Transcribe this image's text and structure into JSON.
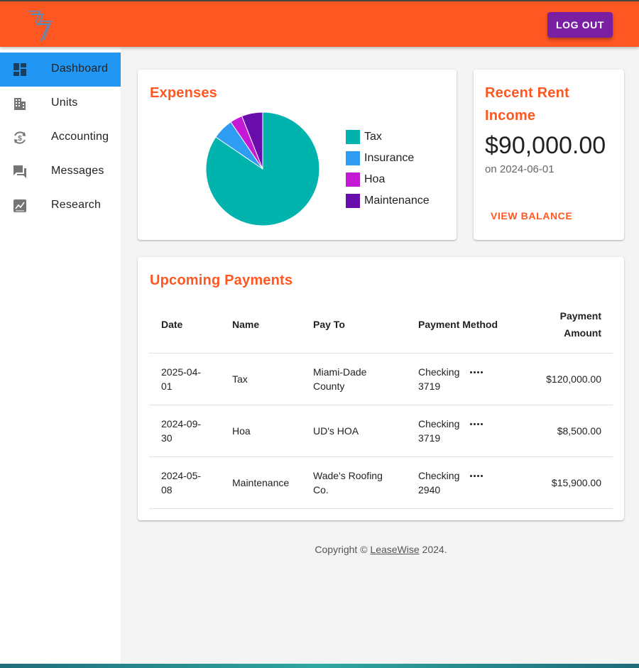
{
  "header": {
    "logout_label": "LOG OUT",
    "brand_color": "#ff5722",
    "button_color": "#7b1fa2"
  },
  "sidebar": {
    "items": [
      {
        "label": "Dashboard",
        "icon": "dashboard-icon",
        "active": true
      },
      {
        "label": "Units",
        "icon": "building-icon",
        "active": false
      },
      {
        "label": "Accounting",
        "icon": "dollar-refresh-icon",
        "active": false
      },
      {
        "label": "Messages",
        "icon": "chat-icon",
        "active": false
      },
      {
        "label": "Research",
        "icon": "chart-line-icon",
        "active": false
      }
    ],
    "active_color": "#2196f3"
  },
  "expenses": {
    "title": "Expenses",
    "legend": [
      {
        "label": "Tax",
        "color": "#00b3ad"
      },
      {
        "label": "Insurance",
        "color": "#2e9cf3"
      },
      {
        "label": "Hoa",
        "color": "#c41ad6"
      },
      {
        "label": "Maintenance",
        "color": "#6a0dad"
      }
    ]
  },
  "chart_data": {
    "type": "pie",
    "categories": [
      "Tax",
      "Insurance",
      "Hoa",
      "Maintenance"
    ],
    "values": [
      120000,
      8500,
      5000,
      8500
    ],
    "colors": [
      "#00b3ad",
      "#2e9cf3",
      "#c41ad6",
      "#6a0dad"
    ],
    "title": "Expenses",
    "legend_position": "right"
  },
  "rent_income": {
    "title_line1": "Recent Rent",
    "title_line2": "Income",
    "amount": "$90,000.00",
    "date_text": "on 2024-06-01",
    "action_label": "VIEW BALANCE"
  },
  "payments": {
    "title": "Upcoming Payments",
    "headers": {
      "date": "Date",
      "name": "Name",
      "pay_to": "Pay To",
      "method": "Payment Method",
      "amount_line1": "Payment",
      "amount_line2": "Amount"
    },
    "rows": [
      {
        "date_l1": "2025-04-",
        "date_l2": "01",
        "name": "Tax",
        "payto_l1": "Miami-Dade",
        "payto_l2": "County",
        "method_l1": "Checking",
        "method_l2": "3719",
        "amount": "$120,000.00"
      },
      {
        "date_l1": "2024-09-",
        "date_l2": "30",
        "name": "Hoa",
        "payto_l1": "UD's HOA",
        "payto_l2": "",
        "method_l1": "Checking",
        "method_l2": "3719",
        "amount": "$8,500.00"
      },
      {
        "date_l1": "2024-05-",
        "date_l2": "08",
        "name": "Maintenance",
        "payto_l1": "Wade's Roofing",
        "payto_l2": "Co.",
        "method_l1": "Checking",
        "method_l2": "2940",
        "amount": "$15,900.00"
      }
    ]
  },
  "footer": {
    "prefix": "Copyright © ",
    "link": "LeaseWise",
    "suffix": " 2024."
  }
}
